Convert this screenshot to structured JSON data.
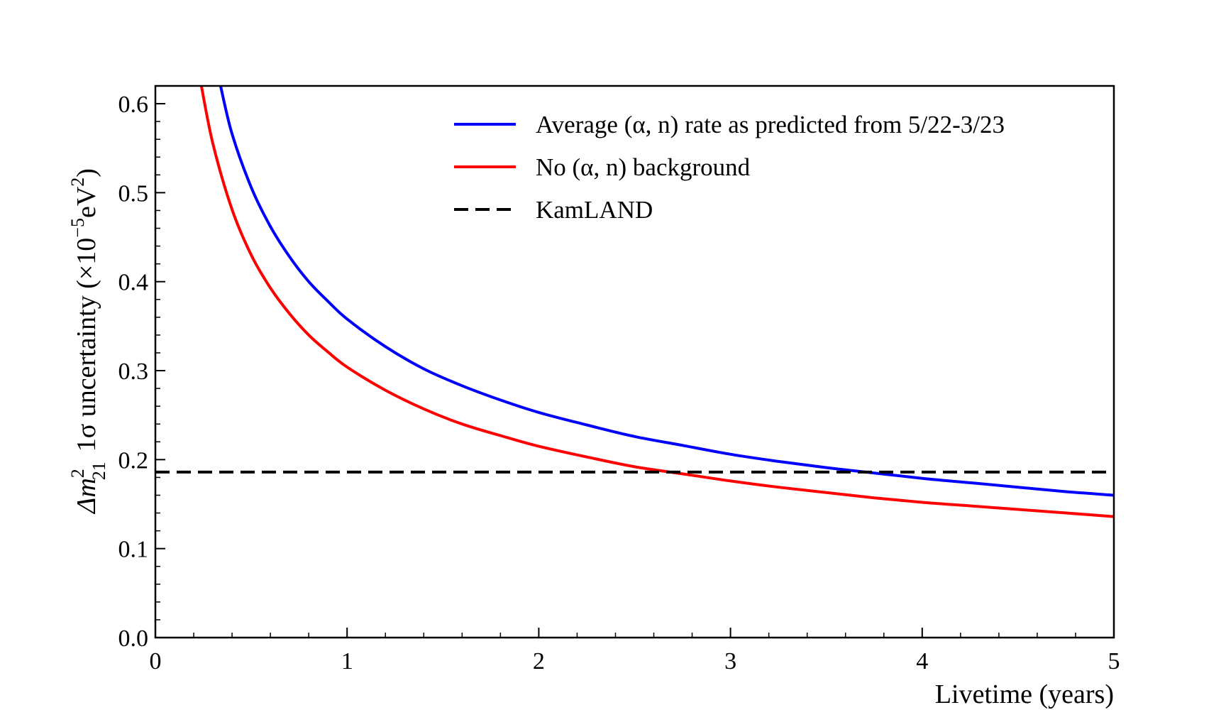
{
  "chart_data": {
    "type": "line",
    "title": "",
    "xlabel": "Livetime (years)",
    "ylabel": "Δm²₂₁ 1σ uncertainty (×10⁻⁵eV²)",
    "ylabel_parts": {
      "delta_m": "Δm",
      "sup": "2",
      "sub": "21",
      "sigma": "1σ",
      "middle": " uncertainty ",
      "unit_open": "(×10",
      "unit_exp": "−5",
      "unit_ev": "eV",
      "unit_ev_exp": "2",
      "unit_close": ")"
    },
    "xlim": [
      0,
      5
    ],
    "ylim": [
      0,
      0.62
    ],
    "x_ticks": [
      "0",
      "1",
      "2",
      "3",
      "4",
      "5"
    ],
    "y_ticks": [
      "0.0",
      "0.1",
      "0.2",
      "0.3",
      "0.4",
      "0.5",
      "0.6"
    ],
    "grid": false,
    "legend_position": "top-right",
    "series": [
      {
        "name": "Average (α, n) rate as predicted from 5/22-3/23",
        "color": "#0000ff",
        "style": "solid",
        "x": [
          0.34,
          0.4,
          0.5,
          0.6,
          0.7,
          0.8,
          0.9,
          1.0,
          1.2,
          1.4,
          1.6,
          1.8,
          2.0,
          2.25,
          2.5,
          2.75,
          3.0,
          3.25,
          3.5,
          3.75,
          4.0,
          4.25,
          4.5,
          4.75,
          5.0
        ],
        "y": [
          0.62,
          0.566,
          0.506,
          0.462,
          0.428,
          0.4,
          0.378,
          0.358,
          0.327,
          0.302,
          0.283,
          0.267,
          0.253,
          0.239,
          0.226,
          0.216,
          0.206,
          0.198,
          0.191,
          0.185,
          0.179,
          0.174,
          0.169,
          0.164,
          0.16
        ]
      },
      {
        "name": "No (α, n) background",
        "color": "#ff0000",
        "style": "solid",
        "x": [
          0.24,
          0.3,
          0.4,
          0.5,
          0.6,
          0.7,
          0.8,
          0.9,
          1.0,
          1.2,
          1.4,
          1.6,
          1.8,
          2.0,
          2.25,
          2.5,
          2.75,
          3.0,
          3.25,
          3.5,
          3.75,
          4.0,
          4.25,
          4.5,
          4.75,
          5.0
        ],
        "y": [
          0.62,
          0.555,
          0.481,
          0.43,
          0.393,
          0.364,
          0.34,
          0.321,
          0.304,
          0.278,
          0.257,
          0.24,
          0.227,
          0.215,
          0.203,
          0.192,
          0.184,
          0.176,
          0.169,
          0.163,
          0.157,
          0.152,
          0.148,
          0.144,
          0.14,
          0.136
        ]
      },
      {
        "name": "KamLAND",
        "color": "#000000",
        "style": "dashed",
        "x": [
          0,
          5
        ],
        "y": [
          0.186,
          0.186
        ]
      }
    ]
  }
}
